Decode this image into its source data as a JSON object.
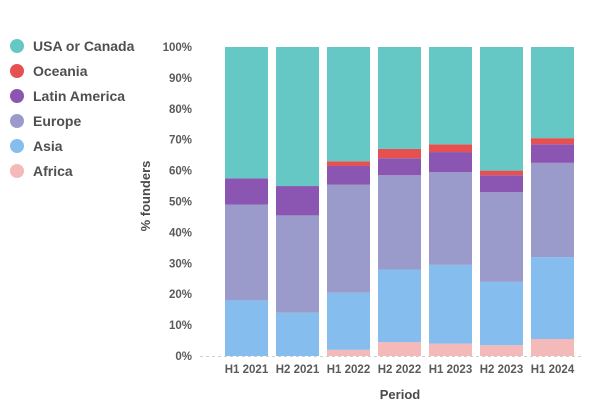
{
  "chart_data": {
    "type": "bar",
    "stacked": true,
    "xlabel": "Period",
    "ylabel": "% founders",
    "ylim": [
      0,
      100
    ],
    "yticks": [
      "0%",
      "10%",
      "20%",
      "30%",
      "40%",
      "50%",
      "60%",
      "70%",
      "80%",
      "90%",
      "100%"
    ],
    "categories": [
      "H1 2021",
      "H2 2021",
      "H1 2022",
      "H2 2022",
      "H1 2023",
      "H2 2023",
      "H1 2024"
    ],
    "series": [
      {
        "name": "Africa",
        "color": "#f4b9b9",
        "values": [
          0,
          0,
          2,
          4.5,
          4,
          3.5,
          5.5
        ]
      },
      {
        "name": "Asia",
        "color": "#85bdee",
        "values": [
          18,
          14,
          18.5,
          23.5,
          25.5,
          20.5,
          26.5
        ]
      },
      {
        "name": "Europe",
        "color": "#9b9bcb",
        "values": [
          31,
          31.5,
          35,
          30.5,
          30,
          29,
          30.5
        ]
      },
      {
        "name": "Latin America",
        "color": "#8b55b2",
        "values": [
          8.5,
          9.5,
          6,
          5.5,
          6.5,
          5.5,
          6
        ]
      },
      {
        "name": "Oceania",
        "color": "#e55050",
        "values": [
          0,
          0,
          1.5,
          3,
          2.5,
          1.5,
          2
        ]
      },
      {
        "name": "USA or Canada",
        "color": "#66c8c5",
        "values": [
          42.5,
          45,
          37,
          33,
          31.5,
          40,
          29.5
        ]
      }
    ],
    "legend": {
      "position": "top-left",
      "order": [
        "USA or Canada",
        "Oceania",
        "Latin America",
        "Europe",
        "Asia",
        "Africa"
      ]
    },
    "grid": false
  }
}
